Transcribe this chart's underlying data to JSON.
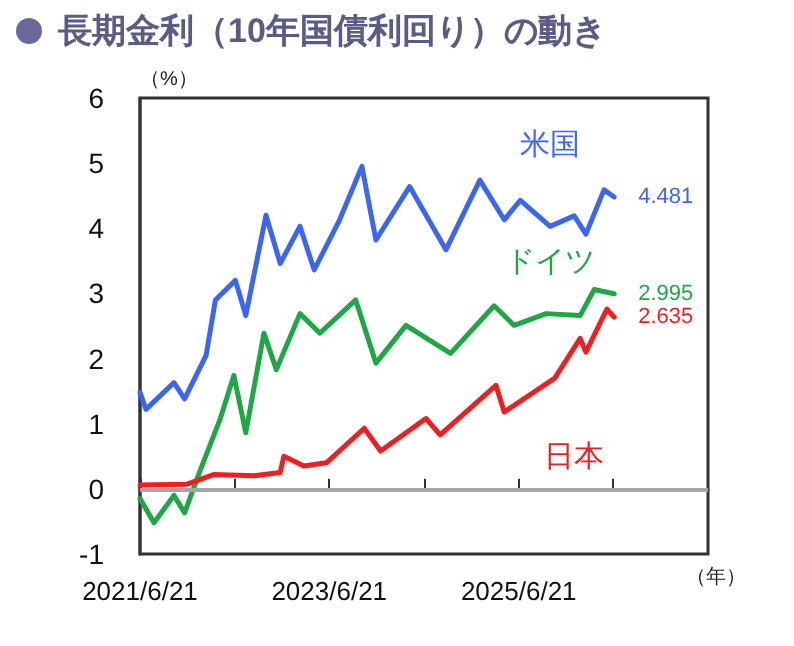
{
  "chart_data": {
    "type": "line",
    "title": "長期金利（10年国債利回り）の動き",
    "ylabel": "（%）",
    "xlabel": "（年）",
    "xlim": [
      "2021-06-21",
      "2027-06-21"
    ],
    "xticks": [
      {
        "value": "2021-06-21",
        "label": "2021/6/21"
      },
      {
        "value": "2022-06-21",
        "label": null
      },
      {
        "value": "2023-06-21",
        "label": "2023/6/21"
      },
      {
        "value": "2024-06-21",
        "label": null
      },
      {
        "value": "2025-06-21",
        "label": "2025/6/21"
      },
      {
        "value": "2026-06-21",
        "label": null
      }
    ],
    "ylim": [
      -1,
      6
    ],
    "yticks": [
      -1,
      0,
      1,
      2,
      3,
      4,
      5,
      6
    ],
    "grid": false,
    "legend": false,
    "marker": "none",
    "line_style": "solid",
    "ref_lines": [
      {
        "axis": "y",
        "value": 0,
        "color": "#a6a6a6"
      }
    ],
    "series": [
      {
        "name": "米国",
        "color": "#3b66f5",
        "x": [
          "2021-06-21",
          "2021-07-14",
          "2021-10-30",
          "2021-12-10",
          "2022-03-03",
          "2022-04-08",
          "2022-06-24",
          "2022-08-03",
          "2022-10-20",
          "2022-12-14",
          "2023-02-28",
          "2023-04-24",
          "2023-07-31",
          "2023-10-25",
          "2023-12-18",
          "2024-04-26",
          "2024-09-13",
          "2025-01-22",
          "2025-04-26",
          "2025-06-27",
          "2025-10-20",
          "2026-01-21",
          "2026-03-07",
          "2026-05-16",
          "2026-06-24"
        ],
        "values": [
          1.48,
          1.22,
          1.63,
          1.38,
          2.05,
          2.9,
          3.2,
          2.66,
          4.2,
          3.46,
          4.03,
          3.36,
          4.13,
          4.95,
          3.82,
          4.64,
          3.67,
          4.74,
          4.13,
          4.43,
          4.03,
          4.19,
          3.91,
          4.59,
          4.481
        ],
        "value_labels": [
          null,
          null,
          null,
          null,
          null,
          null,
          null,
          null,
          null,
          null,
          null,
          null,
          null,
          null,
          null,
          null,
          null,
          null,
          null,
          null,
          null,
          null,
          null,
          null,
          "4.481"
        ]
      },
      {
        "name": "ドイツ",
        "color": "#1ea845",
        "x": [
          "2021-06-21",
          "2021-08-14",
          "2021-10-30",
          "2021-12-10",
          "2022-02-05",
          "2022-04-26",
          "2022-06-18",
          "2022-08-03",
          "2022-10-12",
          "2022-11-29",
          "2023-02-28",
          "2023-05-16",
          "2023-10-01",
          "2023-12-18",
          "2024-04-12",
          "2024-10-01",
          "2025-03-18",
          "2025-06-03",
          "2025-10-05",
          "2026-02-13",
          "2026-04-08",
          "2026-06-24"
        ],
        "values": [
          -0.15,
          -0.52,
          -0.1,
          -0.37,
          0.25,
          1.07,
          1.74,
          0.86,
          2.39,
          1.83,
          2.69,
          2.39,
          2.9,
          1.93,
          2.51,
          2.08,
          2.81,
          2.51,
          2.69,
          2.66,
          3.06,
          2.995
        ],
        "value_labels": [
          null,
          null,
          null,
          null,
          null,
          null,
          null,
          null,
          null,
          null,
          null,
          null,
          null,
          null,
          null,
          null,
          null,
          null,
          null,
          null,
          null,
          "2.995"
        ]
      },
      {
        "name": "日本",
        "color": "#f01e1e",
        "x": [
          "2021-06-21",
          "2021-12-17",
          "2022-04-01",
          "2022-09-05",
          "2022-12-14",
          "2022-12-28",
          "2023-03-15",
          "2023-06-10",
          "2023-11-03",
          "2024-01-05",
          "2024-06-28",
          "2024-08-22",
          "2025-03-25",
          "2025-04-26",
          "2025-11-07",
          "2026-02-13",
          "2026-03-07",
          "2026-05-27",
          "2026-06-24"
        ],
        "values": [
          0.06,
          0.07,
          0.22,
          0.2,
          0.25,
          0.5,
          0.35,
          0.4,
          0.93,
          0.58,
          1.08,
          0.83,
          1.59,
          1.18,
          1.7,
          2.31,
          2.1,
          2.76,
          2.635
        ],
        "value_labels": [
          null,
          null,
          null,
          null,
          null,
          null,
          null,
          null,
          null,
          null,
          null,
          null,
          null,
          null,
          null,
          null,
          null,
          null,
          "2.635"
        ]
      }
    ]
  }
}
